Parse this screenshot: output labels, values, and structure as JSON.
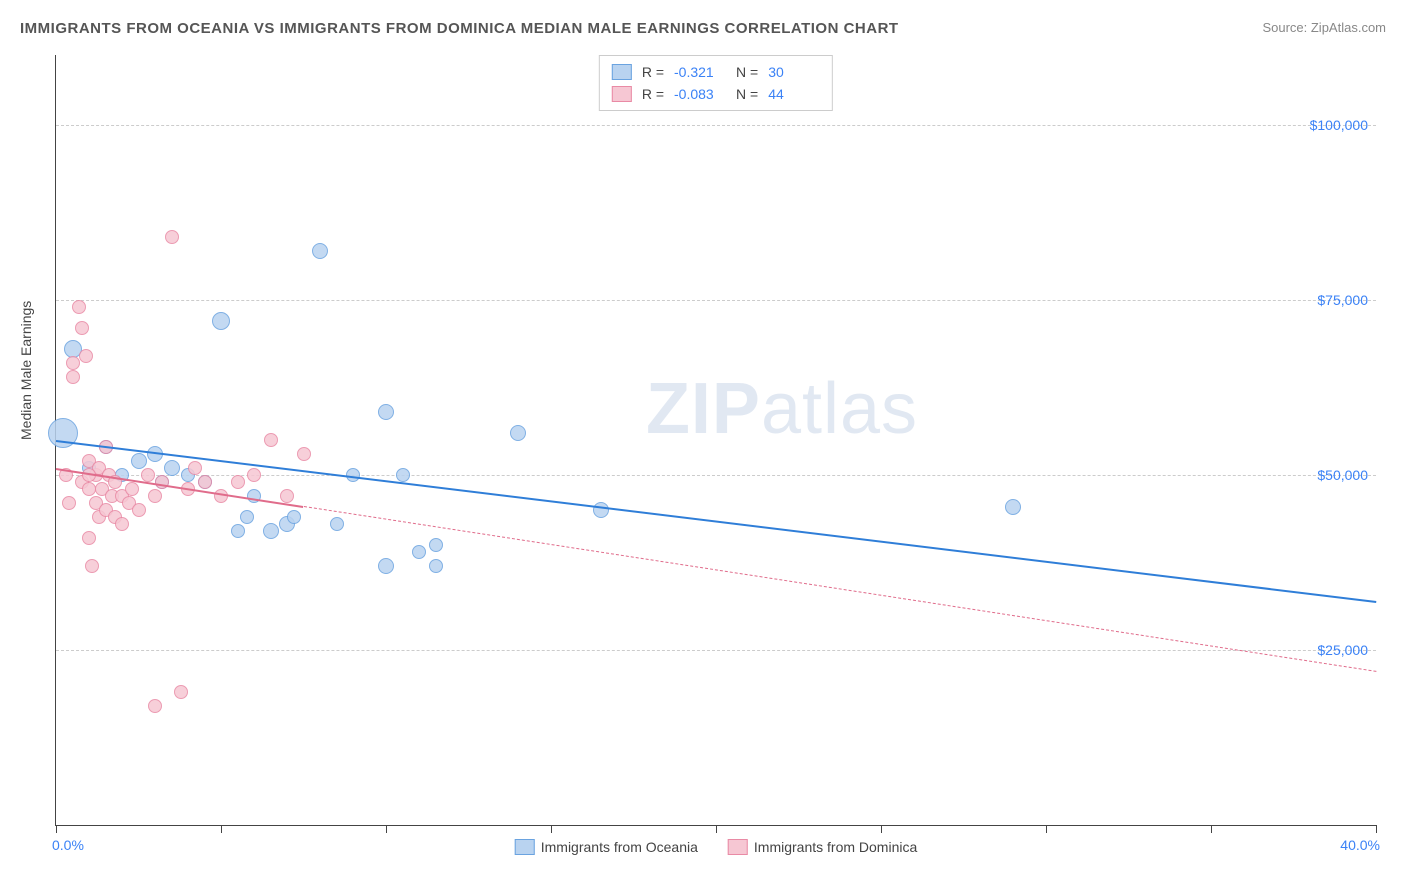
{
  "title": "IMMIGRANTS FROM OCEANIA VS IMMIGRANTS FROM DOMINICA MEDIAN MALE EARNINGS CORRELATION CHART",
  "source": "Source: ZipAtlas.com",
  "watermark_zip": "ZIP",
  "watermark_atlas": "atlas",
  "ylabel": "Median Male Earnings",
  "chart": {
    "type": "scatter",
    "background_color": "#ffffff",
    "grid_color": "#cccccc",
    "axis_color": "#444444",
    "label_color": "#3b82f6",
    "xlim": [
      0,
      40
    ],
    "ylim": [
      0,
      110000
    ],
    "x_axis_label_left": "0.0%",
    "x_axis_label_right": "40.0%",
    "x_ticks_pct": [
      0,
      5,
      10,
      15,
      20,
      25,
      30,
      35,
      40
    ],
    "y_ticks": [
      25000,
      50000,
      75000,
      100000
    ],
    "y_tick_labels": [
      "$25,000",
      "$50,000",
      "$75,000",
      "$100,000"
    ],
    "series": [
      {
        "name": "Immigrants from Oceania",
        "fill": "#b9d3f0",
        "stroke": "#6aa3e0",
        "line_color": "#2f7ed8",
        "line_dash": "solid",
        "line_width": 2.5,
        "R_label": "R =",
        "R": "-0.321",
        "N_label": "N =",
        "N": "30",
        "trend_x1_pct": 0,
        "trend_y1": 55000,
        "trend_x2_pct": 40,
        "trend_y2": 32000,
        "trend_solid_end_pct": 40,
        "points": [
          {
            "x": 0.2,
            "y": 56000,
            "r": 14
          },
          {
            "x": 0.5,
            "y": 68000,
            "r": 8
          },
          {
            "x": 2.5,
            "y": 52000,
            "r": 7
          },
          {
            "x": 1.0,
            "y": 51000,
            "r": 6
          },
          {
            "x": 3.0,
            "y": 53000,
            "r": 7
          },
          {
            "x": 3.5,
            "y": 51000,
            "r": 7
          },
          {
            "x": 4.0,
            "y": 50000,
            "r": 6
          },
          {
            "x": 4.5,
            "y": 49000,
            "r": 6
          },
          {
            "x": 5.0,
            "y": 72000,
            "r": 8
          },
          {
            "x": 5.5,
            "y": 42000,
            "r": 6
          },
          {
            "x": 5.8,
            "y": 44000,
            "r": 6
          },
          {
            "x": 6.0,
            "y": 47000,
            "r": 6
          },
          {
            "x": 6.5,
            "y": 42000,
            "r": 7
          },
          {
            "x": 7.0,
            "y": 43000,
            "r": 7
          },
          {
            "x": 7.2,
            "y": 44000,
            "r": 6
          },
          {
            "x": 8.0,
            "y": 82000,
            "r": 7
          },
          {
            "x": 8.5,
            "y": 43000,
            "r": 6
          },
          {
            "x": 9.0,
            "y": 50000,
            "r": 6
          },
          {
            "x": 10.0,
            "y": 59000,
            "r": 7
          },
          {
            "x": 10.0,
            "y": 37000,
            "r": 7
          },
          {
            "x": 10.5,
            "y": 50000,
            "r": 6
          },
          {
            "x": 11.0,
            "y": 39000,
            "r": 6
          },
          {
            "x": 11.5,
            "y": 40000,
            "r": 6
          },
          {
            "x": 11.5,
            "y": 37000,
            "r": 6
          },
          {
            "x": 14.0,
            "y": 56000,
            "r": 7
          },
          {
            "x": 16.5,
            "y": 45000,
            "r": 7
          },
          {
            "x": 29.0,
            "y": 45500,
            "r": 7
          },
          {
            "x": 1.5,
            "y": 54000,
            "r": 6
          },
          {
            "x": 2.0,
            "y": 50000,
            "r": 6
          },
          {
            "x": 3.2,
            "y": 49000,
            "r": 6
          }
        ]
      },
      {
        "name": "Immigrants from Dominica",
        "fill": "#f6c7d3",
        "stroke": "#e98aa5",
        "line_color": "#e06c8b",
        "line_dash": "solid_then_dashed",
        "line_width": 2.0,
        "R_label": "R =",
        "R": "-0.083",
        "N_label": "N =",
        "N": "44",
        "trend_x1_pct": 0,
        "trend_y1": 51000,
        "trend_x2_pct": 40,
        "trend_y2": 22000,
        "trend_solid_end_pct": 7.5,
        "points": [
          {
            "x": 0.3,
            "y": 50000,
            "r": 6
          },
          {
            "x": 0.4,
            "y": 46000,
            "r": 6
          },
          {
            "x": 0.5,
            "y": 66000,
            "r": 6
          },
          {
            "x": 0.5,
            "y": 64000,
            "r": 6
          },
          {
            "x": 0.7,
            "y": 74000,
            "r": 6
          },
          {
            "x": 0.8,
            "y": 71000,
            "r": 6
          },
          {
            "x": 0.8,
            "y": 49000,
            "r": 6
          },
          {
            "x": 0.9,
            "y": 67000,
            "r": 6
          },
          {
            "x": 1.0,
            "y": 52000,
            "r": 6
          },
          {
            "x": 1.0,
            "y": 48000,
            "r": 6
          },
          {
            "x": 1.0,
            "y": 41000,
            "r": 6
          },
          {
            "x": 1.1,
            "y": 37000,
            "r": 6
          },
          {
            "x": 1.2,
            "y": 50000,
            "r": 6
          },
          {
            "x": 1.2,
            "y": 46000,
            "r": 6
          },
          {
            "x": 1.3,
            "y": 44000,
            "r": 6
          },
          {
            "x": 1.3,
            "y": 51000,
            "r": 6
          },
          {
            "x": 1.4,
            "y": 48000,
            "r": 6
          },
          {
            "x": 1.5,
            "y": 45000,
            "r": 6
          },
          {
            "x": 1.5,
            "y": 54000,
            "r": 6
          },
          {
            "x": 1.6,
            "y": 50000,
            "r": 6
          },
          {
            "x": 1.7,
            "y": 47000,
            "r": 6
          },
          {
            "x": 1.8,
            "y": 44000,
            "r": 6
          },
          {
            "x": 1.8,
            "y": 49000,
            "r": 6
          },
          {
            "x": 2.0,
            "y": 43000,
            "r": 6
          },
          {
            "x": 2.0,
            "y": 47000,
            "r": 6
          },
          {
            "x": 2.2,
            "y": 46000,
            "r": 6
          },
          {
            "x": 2.3,
            "y": 48000,
            "r": 6
          },
          {
            "x": 2.5,
            "y": 45000,
            "r": 6
          },
          {
            "x": 2.8,
            "y": 50000,
            "r": 6
          },
          {
            "x": 3.0,
            "y": 17000,
            "r": 6
          },
          {
            "x": 3.0,
            "y": 47000,
            "r": 6
          },
          {
            "x": 3.2,
            "y": 49000,
            "r": 6
          },
          {
            "x": 3.5,
            "y": 84000,
            "r": 6
          },
          {
            "x": 3.8,
            "y": 19000,
            "r": 6
          },
          {
            "x": 4.0,
            "y": 48000,
            "r": 6
          },
          {
            "x": 4.2,
            "y": 51000,
            "r": 6
          },
          {
            "x": 4.5,
            "y": 49000,
            "r": 6
          },
          {
            "x": 5.0,
            "y": 47000,
            "r": 6
          },
          {
            "x": 5.5,
            "y": 49000,
            "r": 6
          },
          {
            "x": 6.0,
            "y": 50000,
            "r": 6
          },
          {
            "x": 6.5,
            "y": 55000,
            "r": 6
          },
          {
            "x": 7.0,
            "y": 47000,
            "r": 6
          },
          {
            "x": 7.5,
            "y": 53000,
            "r": 6
          },
          {
            "x": 1.0,
            "y": 50000,
            "r": 6
          }
        ]
      }
    ]
  },
  "legend_bottom": [
    "Immigrants from Oceania",
    "Immigrants from Dominica"
  ]
}
